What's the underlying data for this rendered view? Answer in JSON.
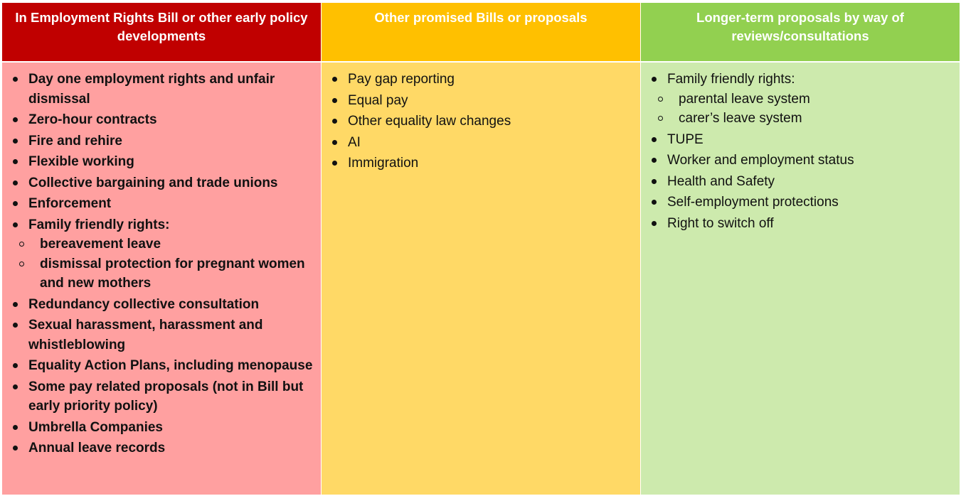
{
  "columns": [
    {
      "header": "In Employment Rights Bill or other early policy developments",
      "color": "#c00000",
      "body_color": "#ffa0a0",
      "items": [
        {
          "text": "Day one employment rights and unfair dismissal"
        },
        {
          "text": "Zero-hour contracts"
        },
        {
          "text": "Fire and rehire"
        },
        {
          "text": "Flexible working"
        },
        {
          "text": "Collective bargaining and trade unions"
        },
        {
          "text": "Enforcement"
        },
        {
          "text": "Family friendly rights:",
          "sub": [
            "bereavement leave",
            "dismissal protection for pregnant women and new mothers"
          ]
        },
        {
          "text": "Redundancy collective consultation"
        },
        {
          "text": "Sexual harassment, harassment and whistleblowing"
        },
        {
          "text": "Equality Action Plans, including menopause"
        },
        {
          "text": "Some pay related proposals (not in Bill but early priority policy)"
        },
        {
          "text": "Umbrella Companies"
        },
        {
          "text": "Annual leave records"
        }
      ]
    },
    {
      "header": "Other promised Bills or proposals",
      "color": "#ffc000",
      "body_color": "#ffd966",
      "items": [
        {
          "text": "Pay gap reporting"
        },
        {
          "text": "Equal pay"
        },
        {
          "text": "Other equality law changes"
        },
        {
          "text": "AI"
        },
        {
          "text": "Immigration"
        }
      ]
    },
    {
      "header": "Longer-term proposals by way of reviews/consultations",
      "color": "#92d050",
      "body_color": "#cdeaad",
      "items": [
        {
          "text": "Family friendly rights:",
          "sub": [
            "parental leave system",
            "carer’s leave system"
          ]
        },
        {
          "text": "TUPE"
        },
        {
          "text": "Worker and employment status"
        },
        {
          "text": "Health and Safety"
        },
        {
          "text": "Self-employment protections"
        },
        {
          "text": "Right to switch off"
        }
      ]
    }
  ]
}
